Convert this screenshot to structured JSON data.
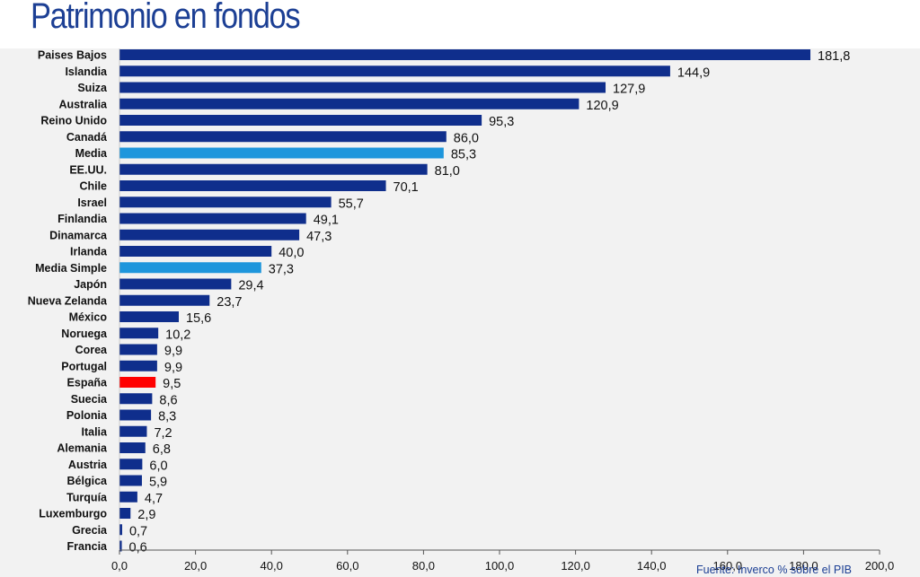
{
  "title": "Patrimonio en fondos",
  "source_note": "Fuente: Inverco % sobre el PIB",
  "colors": {
    "title": "#1c3f94",
    "bar_default": "#0f2e8c",
    "bar_average": "#1e96dc",
    "bar_highlight": "#ff0000",
    "background": "#f2f2f2"
  },
  "chart_data": {
    "type": "bar",
    "orientation": "horizontal",
    "xlim": [
      0,
      200
    ],
    "x_ticks": [
      "0,0",
      "20,0",
      "40,0",
      "60,0",
      "80,0",
      "100,0",
      "120,0",
      "140,0",
      "160,0",
      "180,0",
      "200,0"
    ],
    "grid": false,
    "categories": [
      "Paises Bajos",
      "Islandia",
      "Suiza",
      "Australia",
      "Reino Unido",
      "Canadá",
      "Media",
      "EE.UU.",
      "Chile",
      "Israel",
      "Finlandia",
      "Dinamarca",
      "Irlanda",
      "Media Simple",
      "Japón",
      "Nueva Zelanda",
      "México",
      "Noruega",
      "Corea",
      "Portugal",
      "España",
      "Suecia",
      "Polonia",
      "Italia",
      "Alemania",
      "Austria",
      "Bélgica",
      "Turquía",
      "Luxemburgo",
      "Grecia",
      "Francia"
    ],
    "values": [
      181.8,
      144.9,
      127.9,
      120.9,
      95.3,
      86.0,
      85.3,
      81.0,
      70.1,
      55.7,
      49.1,
      47.3,
      40.0,
      37.3,
      29.4,
      23.7,
      15.6,
      10.2,
      9.9,
      9.9,
      9.5,
      8.6,
      8.3,
      7.2,
      6.8,
      6.0,
      5.9,
      4.7,
      2.9,
      0.7,
      0.6
    ],
    "value_labels": [
      "181,8",
      "144,9",
      "127,9",
      "120,9",
      "95,3",
      "86,0",
      "85,3",
      "81,0",
      "70,1",
      "55,7",
      "49,1",
      "47,3",
      "40,0",
      "37,3",
      "29,4",
      "23,7",
      "15,6",
      "10,2",
      "9,9",
      "9,9",
      "9,5",
      "8,6",
      "8,3",
      "7,2",
      "6,8",
      "6,0",
      "5,9",
      "4,7",
      "2,9",
      "0,7",
      "0,6"
    ],
    "bar_colors": {
      "Media": "#1e96dc",
      "Media Simple": "#1e96dc",
      "España": "#ff0000"
    }
  }
}
